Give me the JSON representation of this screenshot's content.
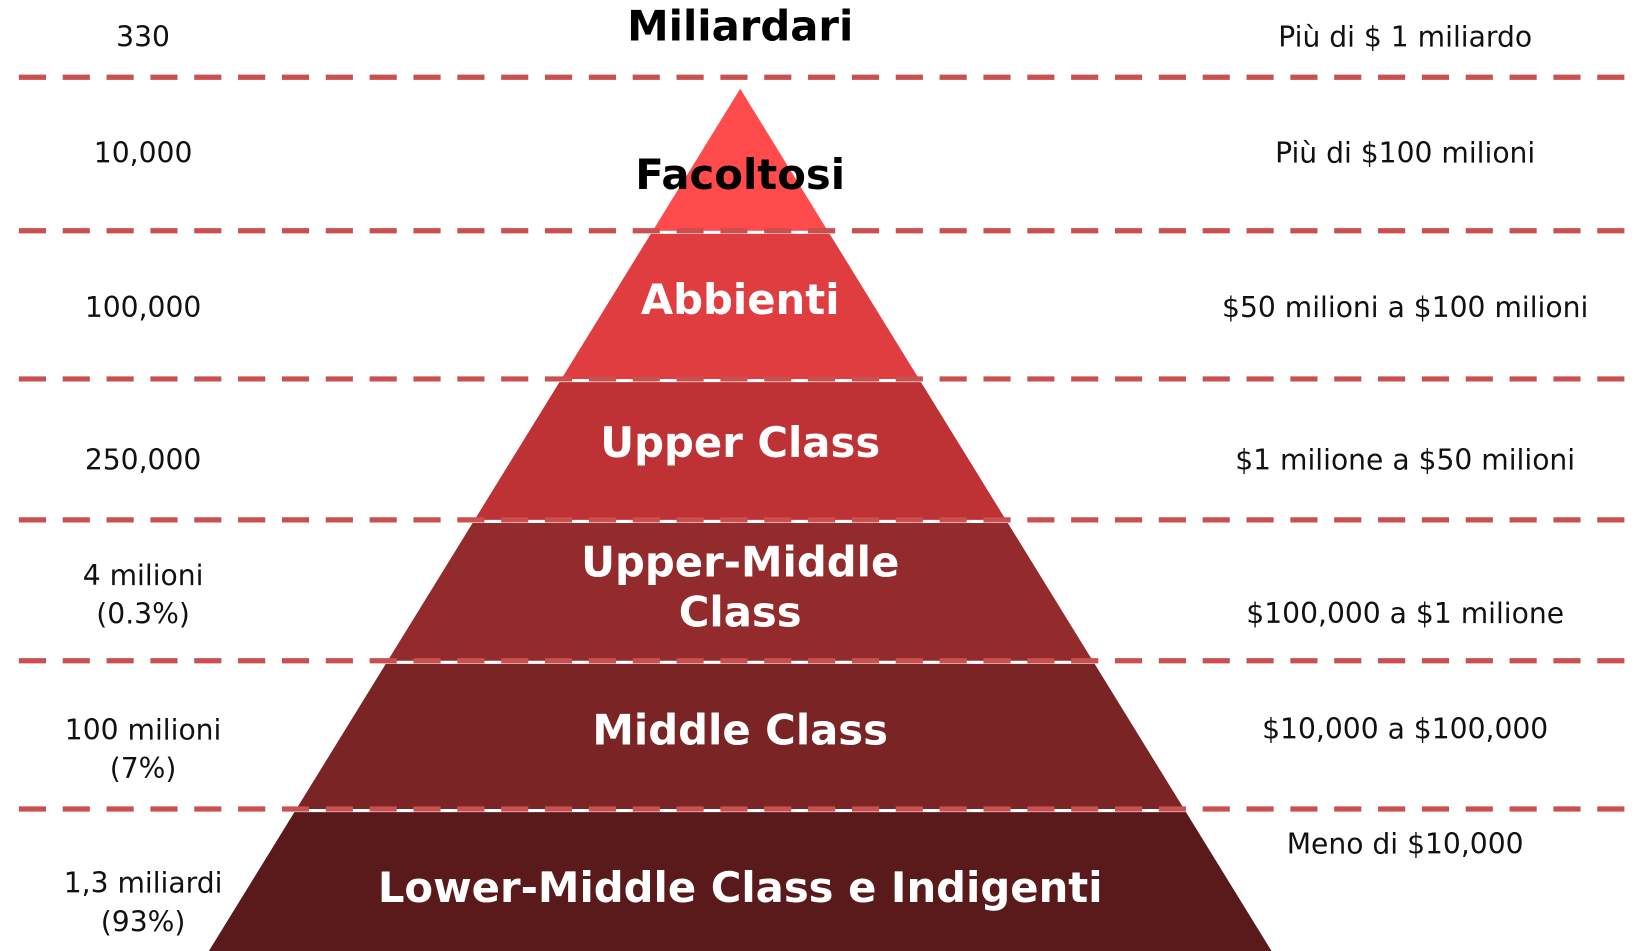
{
  "levels": [
    {
      "label": [
        "Miliardari"
      ],
      "count": [
        "330"
      ],
      "wealth": [
        "Più di $ 1 miliardo"
      ]
    },
    {
      "label": [
        "Facoltosi"
      ],
      "count": [
        "10,000"
      ],
      "wealth": [
        "Più di $100 milioni"
      ]
    },
    {
      "label": [
        "Abbienti"
      ],
      "count": [
        "100,000"
      ],
      "wealth": [
        "$50 milioni a $100 milioni"
      ]
    },
    {
      "label": [
        "Upper Class"
      ],
      "count": [
        "250,000"
      ],
      "wealth": [
        "$1 milione a $50 milioni"
      ]
    },
    {
      "label": [
        "Upper-Middle",
        "Class"
      ],
      "count": [
        "4 milioni",
        "(0.3%)"
      ],
      "wealth": [
        "$100,000 a $1 milione"
      ]
    },
    {
      "label": [
        "Middle Class"
      ],
      "count": [
        "100 milioni",
        "(7%)"
      ],
      "wealth": [
        "$10,000 a $100,000"
      ]
    },
    {
      "label": [
        "Lower-Middle Class e Indigenti"
      ],
      "count": [
        "1,3 miliardi",
        "(93%)"
      ],
      "wealth": [
        "Meno di $10,000"
      ]
    }
  ]
}
